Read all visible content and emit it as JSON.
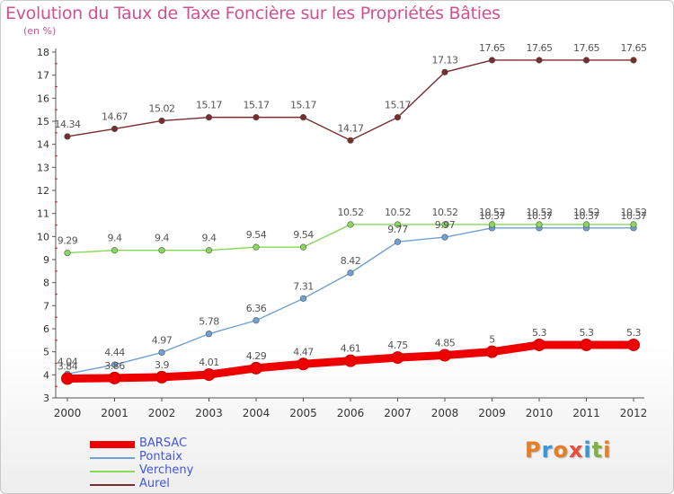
{
  "header": {
    "title": "Evolution du Taux de Taxe Foncière sur les Propriétés Bâties",
    "subtitle": "(en %)"
  },
  "logo": {
    "text": "Proxiti",
    "colors": [
      "#e67e22",
      "#3498db",
      "#e67e22",
      "#e74c3c",
      "#3498db",
      "#7cb342",
      "#e67e22"
    ]
  },
  "chart_data": {
    "type": "line",
    "title": "Evolution du Taux de Taxe Foncière sur les Propriétés Bâties",
    "ylabel": "(en %)",
    "x": [
      "2000",
      "2001",
      "2002",
      "2003",
      "2004",
      "2005",
      "2006",
      "2007",
      "2008",
      "2009",
      "2010",
      "2011",
      "2012"
    ],
    "ylim": [
      3,
      18
    ],
    "yticks": [
      "3",
      "4",
      "5",
      "6",
      "7",
      "8",
      "9",
      "10",
      "11",
      "12",
      "13",
      "14",
      "15",
      "16",
      "17",
      "18"
    ],
    "grid": false,
    "legend_position": "bottom-left",
    "series": [
      {
        "name": "BARSAC",
        "color": "#ee0000",
        "width": "thick",
        "values": [
          3.84,
          3.86,
          3.9,
          4.01,
          4.29,
          4.47,
          4.61,
          4.75,
          4.85,
          5,
          5.3,
          5.3,
          5.3
        ],
        "labels": [
          "3.84",
          "3.86",
          "3.9",
          "4.01",
          "4.29",
          "4.47",
          "4.61",
          "4.75",
          "4.85",
          "5",
          "5.3",
          "5.3",
          "5.3"
        ]
      },
      {
        "name": "Pontaix",
        "color": "#6fa1d6",
        "width": "thin",
        "values": [
          4.04,
          4.44,
          4.97,
          5.78,
          6.36,
          7.31,
          8.42,
          9.77,
          9.97,
          10.37,
          10.37,
          10.37,
          10.37
        ],
        "labels": [
          "4.04",
          "4.44",
          "4.97",
          "5.78",
          "6.36",
          "7.31",
          "8.42",
          "9.77",
          "9.97",
          "10.37",
          "10.37",
          "10.37",
          "10.37"
        ]
      },
      {
        "name": "Vercheny",
        "color": "#88d85a",
        "width": "thin",
        "values": [
          9.29,
          9.4,
          9.4,
          9.4,
          9.54,
          9.54,
          10.52,
          10.52,
          10.52,
          10.52,
          10.52,
          10.52,
          10.52
        ],
        "labels": [
          "9.29",
          "9.4",
          "9.4",
          "9.4",
          "9.54",
          "9.54",
          "10.52",
          "10.52",
          "10.52",
          "10.52",
          "10.52",
          "10.52",
          "10.52"
        ]
      },
      {
        "name": "Aurel",
        "color": "#7a2b2b",
        "width": "thin",
        "values": [
          14.34,
          14.67,
          15.02,
          15.17,
          15.17,
          15.17,
          14.17,
          15.17,
          17.13,
          17.65,
          17.65,
          17.65,
          17.65
        ],
        "labels": [
          "14.34",
          "14.67",
          "15.02",
          "15.17",
          "15.17",
          "15.17",
          "14.17",
          "15.17",
          "17.13",
          "17.65",
          "17.65",
          "17.65",
          "17.65"
        ]
      }
    ]
  }
}
